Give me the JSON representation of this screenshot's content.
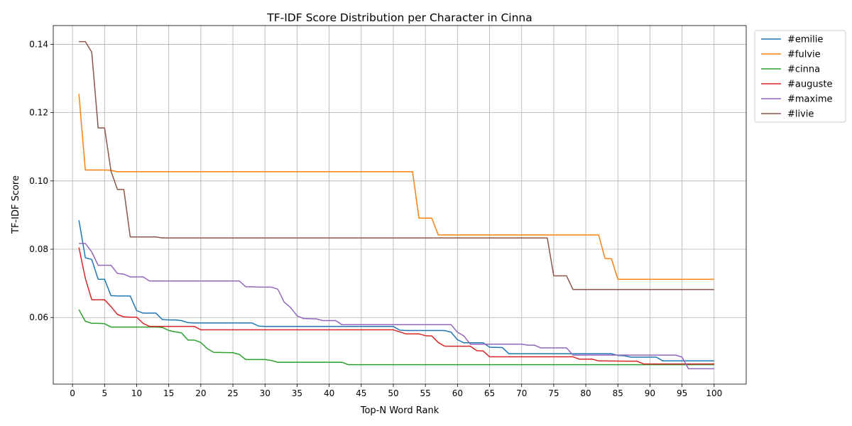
{
  "chart_data": {
    "type": "line",
    "title": "TF-IDF Score Distribution per Character in Cinna",
    "xlabel": "Top-N Word Rank",
    "ylabel": "TF-IDF Score",
    "xlim": [
      -3,
      105
    ],
    "ylim": [
      0.0405,
      0.1455
    ],
    "xticks": [
      0,
      5,
      10,
      15,
      20,
      25,
      30,
      35,
      40,
      45,
      50,
      55,
      60,
      65,
      70,
      75,
      80,
      85,
      90,
      95,
      100
    ],
    "yticks": [
      0.06,
      0.08,
      0.1,
      0.12,
      0.14
    ],
    "ytick_labels": [
      "0.06",
      "0.08",
      "0.10",
      "0.12",
      "0.14"
    ],
    "grid": true,
    "legend": "outside-top-right",
    "series": [
      {
        "name": "#emilie",
        "color": "#1f77b4",
        "points": [
          [
            1,
            0.0885
          ],
          [
            2,
            0.0775
          ],
          [
            3,
            0.077
          ],
          [
            4,
            0.0712
          ],
          [
            5,
            0.0712
          ],
          [
            6,
            0.0664
          ],
          [
            7,
            0.0663
          ],
          [
            8,
            0.0663
          ],
          [
            9,
            0.0663
          ],
          [
            10,
            0.062
          ],
          [
            11,
            0.0613
          ],
          [
            12,
            0.0613
          ],
          [
            13,
            0.0613
          ],
          [
            14,
            0.0594
          ],
          [
            15,
            0.0593
          ],
          [
            16,
            0.0593
          ],
          [
            17,
            0.0591
          ],
          [
            18,
            0.0585
          ],
          [
            19,
            0.0584
          ],
          [
            20,
            0.0584
          ],
          [
            28,
            0.0584
          ],
          [
            29,
            0.0575
          ],
          [
            30,
            0.0574
          ],
          [
            50,
            0.0574
          ],
          [
            51,
            0.0563
          ],
          [
            52,
            0.0562
          ],
          [
            58,
            0.0562
          ],
          [
            59,
            0.0557
          ],
          [
            60,
            0.0535
          ],
          [
            61,
            0.0526
          ],
          [
            64,
            0.0526
          ],
          [
            65,
            0.0513
          ],
          [
            67,
            0.0512
          ],
          [
            68,
            0.0494
          ],
          [
            84,
            0.0494
          ],
          [
            85,
            0.0489
          ],
          [
            86,
            0.0488
          ],
          [
            87,
            0.0484
          ],
          [
            91,
            0.0484
          ],
          [
            92,
            0.0473
          ],
          [
            100,
            0.0473
          ]
        ]
      },
      {
        "name": "#fulvie",
        "color": "#ff7f0e",
        "points": [
          [
            1,
            0.1255
          ],
          [
            2,
            0.1032
          ],
          [
            5,
            0.1032
          ],
          [
            6,
            0.1031
          ],
          [
            7,
            0.1027
          ],
          [
            53,
            0.1027
          ],
          [
            54,
            0.0891
          ],
          [
            55,
            0.0891
          ],
          [
            56,
            0.0891
          ],
          [
            57,
            0.0842
          ],
          [
            82,
            0.0842
          ],
          [
            83,
            0.0773
          ],
          [
            84,
            0.0772
          ],
          [
            85,
            0.0712
          ],
          [
            100,
            0.0712
          ]
        ]
      },
      {
        "name": "#cinna",
        "color": "#2ca02c",
        "points": [
          [
            1,
            0.0623
          ],
          [
            2,
            0.0589
          ],
          [
            3,
            0.0583
          ],
          [
            4,
            0.0583
          ],
          [
            5,
            0.0582
          ],
          [
            6,
            0.0572
          ],
          [
            13,
            0.0572
          ],
          [
            14,
            0.0571
          ],
          [
            15,
            0.0562
          ],
          [
            16,
            0.0558
          ],
          [
            17,
            0.0555
          ],
          [
            18,
            0.0534
          ],
          [
            19,
            0.0534
          ],
          [
            20,
            0.0527
          ],
          [
            21,
            0.0509
          ],
          [
            22,
            0.0498
          ],
          [
            25,
            0.0497
          ],
          [
            26,
            0.0492
          ],
          [
            27,
            0.0477
          ],
          [
            30,
            0.0477
          ],
          [
            31,
            0.0474
          ],
          [
            32,
            0.0469
          ],
          [
            42,
            0.0469
          ],
          [
            43,
            0.0462
          ],
          [
            100,
            0.0462
          ]
        ]
      },
      {
        "name": "#auguste",
        "color": "#d62728",
        "points": [
          [
            1,
            0.0805
          ],
          [
            2,
            0.0715
          ],
          [
            3,
            0.0652
          ],
          [
            4,
            0.0652
          ],
          [
            5,
            0.0652
          ],
          [
            6,
            0.0632
          ],
          [
            7,
            0.0609
          ],
          [
            8,
            0.0602
          ],
          [
            9,
            0.0601
          ],
          [
            10,
            0.0601
          ],
          [
            11,
            0.0583
          ],
          [
            12,
            0.0574
          ],
          [
            19,
            0.0574
          ],
          [
            20,
            0.0564
          ],
          [
            50,
            0.0564
          ],
          [
            51,
            0.0558
          ],
          [
            52,
            0.0552
          ],
          [
            54,
            0.0552
          ],
          [
            55,
            0.0547
          ],
          [
            56,
            0.0546
          ],
          [
            57,
            0.0527
          ],
          [
            58,
            0.0516
          ],
          [
            61,
            0.0516
          ],
          [
            62,
            0.0516
          ],
          [
            63,
            0.0503
          ],
          [
            64,
            0.0502
          ],
          [
            65,
            0.0485
          ],
          [
            78,
            0.0485
          ],
          [
            79,
            0.0478
          ],
          [
            81,
            0.0478
          ],
          [
            82,
            0.0473
          ],
          [
            87,
            0.0472
          ],
          [
            88,
            0.0472
          ],
          [
            89,
            0.0464
          ],
          [
            100,
            0.0464
          ]
        ]
      },
      {
        "name": "#maxime",
        "color": "#9467bd",
        "points": [
          [
            1,
            0.0817
          ],
          [
            2,
            0.0817
          ],
          [
            3,
            0.0792
          ],
          [
            4,
            0.0753
          ],
          [
            6,
            0.0753
          ],
          [
            7,
            0.0729
          ],
          [
            8,
            0.0727
          ],
          [
            9,
            0.0719
          ],
          [
            11,
            0.0719
          ],
          [
            12,
            0.0707
          ],
          [
            26,
            0.0707
          ],
          [
            27,
            0.069
          ],
          [
            28,
            0.069
          ],
          [
            29,
            0.0689
          ],
          [
            31,
            0.0689
          ],
          [
            32,
            0.0683
          ],
          [
            33,
            0.0645
          ],
          [
            34,
            0.0629
          ],
          [
            35,
            0.0605
          ],
          [
            36,
            0.0597
          ],
          [
            38,
            0.0596
          ],
          [
            39,
            0.0591
          ],
          [
            41,
            0.0591
          ],
          [
            42,
            0.0579
          ],
          [
            59,
            0.0579
          ],
          [
            60,
            0.0557
          ],
          [
            61,
            0.0546
          ],
          [
            62,
            0.0522
          ],
          [
            70,
            0.0522
          ],
          [
            71,
            0.0519
          ],
          [
            72,
            0.0519
          ],
          [
            73,
            0.0511
          ],
          [
            77,
            0.0511
          ],
          [
            78,
            0.049
          ],
          [
            94,
            0.049
          ],
          [
            95,
            0.0484
          ],
          [
            96,
            0.045
          ],
          [
            100,
            0.045
          ]
        ]
      },
      {
        "name": "#livie",
        "color": "#8c564b",
        "points": [
          [
            1,
            0.1408
          ],
          [
            2,
            0.1408
          ],
          [
            3,
            0.1377
          ],
          [
            4,
            0.1155
          ],
          [
            5,
            0.1155
          ],
          [
            6,
            0.1029
          ],
          [
            7,
            0.0975
          ],
          [
            8,
            0.0975
          ],
          [
            9,
            0.0836
          ],
          [
            13,
            0.0836
          ],
          [
            14,
            0.0833
          ],
          [
            74,
            0.0833
          ],
          [
            75,
            0.0722
          ],
          [
            77,
            0.0722
          ],
          [
            78,
            0.0682
          ],
          [
            100,
            0.0682
          ]
        ]
      }
    ]
  }
}
